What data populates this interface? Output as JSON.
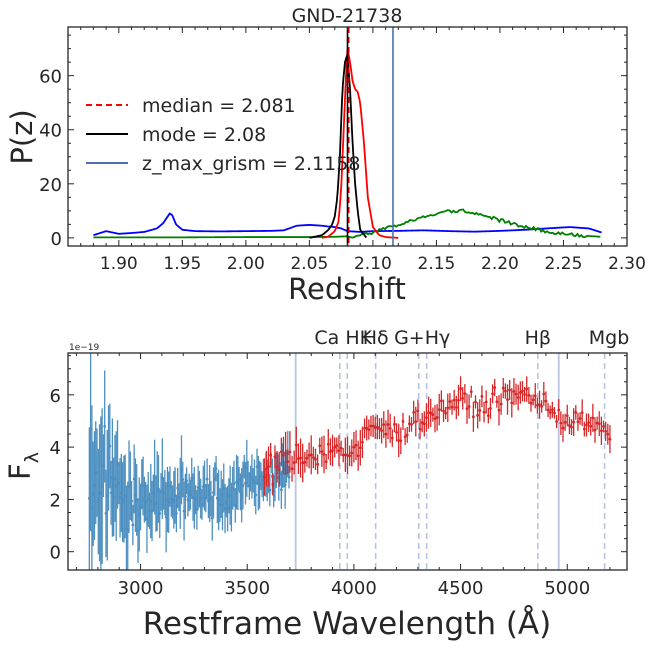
{
  "chart_data": [
    {
      "type": "line",
      "title": "GND-21738",
      "xlabel": "Redshift",
      "ylabel": "P(z)",
      "xlim": [
        1.86,
        2.3
      ],
      "ylim": [
        -3,
        78
      ],
      "xticks": [
        1.9,
        1.95,
        2.0,
        2.05,
        2.1,
        2.15,
        2.2,
        2.25,
        2.3
      ],
      "xtick_labels": [
        "1.90",
        "1.95",
        "2.00",
        "2.05",
        "2.10",
        "2.15",
        "2.20",
        "2.25",
        "2.30"
      ],
      "yticks": [
        0,
        20,
        40,
        60
      ],
      "ytick_labels": [
        "0",
        "20",
        "40",
        "60"
      ],
      "grid": false,
      "legend_placement": "center-left",
      "legend": [
        {
          "label": "median = 2.081",
          "color": "#ff0000",
          "style": "dashed"
        },
        {
          "label": "mode = 2.08",
          "color": "#000000",
          "style": "solid"
        },
        {
          "label": "z_max_grism = 2.1158",
          "color": "#4c72b0",
          "style": "solid"
        }
      ],
      "vlines": [
        {
          "x": 2.081,
          "color": "#ff0000",
          "style": "dashed"
        },
        {
          "x": 2.08,
          "color": "#000000",
          "style": "solid"
        },
        {
          "x": 2.1158,
          "color": "#4c72b0",
          "style": "solid"
        }
      ],
      "series": [
        {
          "color": "#0000ff",
          "x": [
            1.88,
            1.89,
            1.895,
            1.9,
            1.91,
            1.92,
            1.93,
            1.935,
            1.94,
            1.942,
            1.945,
            1.95,
            1.96,
            1.98,
            2.0,
            2.02,
            2.03,
            2.04,
            2.05,
            2.06,
            2.065,
            2.07,
            2.075,
            2.08,
            2.09,
            2.1,
            2.12,
            2.14,
            2.16,
            2.18,
            2.2,
            2.22,
            2.24,
            2.255,
            2.27,
            2.28
          ],
          "y": [
            1.0,
            2.5,
            2.0,
            1.5,
            1.8,
            2.2,
            3.5,
            5.5,
            9.0,
            8.5,
            5.0,
            3.0,
            2.5,
            2.4,
            2.5,
            2.6,
            2.8,
            4.5,
            4.8,
            4.5,
            4.2,
            4.0,
            3.5,
            2.5,
            2.2,
            2.5,
            2.6,
            2.8,
            2.5,
            2.3,
            2.6,
            3.0,
            3.6,
            4.0,
            3.5,
            2.0
          ]
        },
        {
          "color": "#008000",
          "x": [
            1.88,
            1.95,
            2.0,
            2.05,
            2.07,
            2.09,
            2.1,
            2.12,
            2.14,
            2.15,
            2.16,
            2.17,
            2.18,
            2.19,
            2.2,
            2.22,
            2.24,
            2.26,
            2.28
          ],
          "y": [
            0.2,
            0.2,
            0.3,
            0.3,
            0.4,
            0.8,
            2.0,
            5.0,
            7.5,
            9.0,
            9.8,
            10.0,
            9.3,
            8.0,
            6.5,
            4.0,
            2.2,
            1.0,
            0.4
          ]
        },
        {
          "color": "#ff0000",
          "x": [
            2.06,
            2.065,
            2.07,
            2.073,
            2.075,
            2.077,
            2.079,
            2.08,
            2.082,
            2.084,
            2.086,
            2.088,
            2.09,
            2.093,
            2.096,
            2.1,
            2.105,
            2.11,
            2.12
          ],
          "y": [
            0.0,
            0.5,
            2.5,
            6.0,
            18.0,
            40.0,
            62.0,
            70.0,
            65.0,
            58.0,
            55.0,
            54.0,
            50.0,
            35.0,
            15.0,
            4.0,
            1.0,
            0.3,
            0.0
          ]
        },
        {
          "color": "#000000",
          "x": [
            2.05,
            2.06,
            2.065,
            2.068,
            2.07,
            2.072,
            2.074,
            2.076,
            2.078,
            2.08,
            2.082,
            2.084,
            2.086,
            2.088,
            2.09,
            2.095
          ],
          "y": [
            0.0,
            1.0,
            3.0,
            5.0,
            8.0,
            15.0,
            30.0,
            55.0,
            65.0,
            68.0,
            55.0,
            35.0,
            20.0,
            10.0,
            3.0,
            0.0
          ]
        }
      ]
    },
    {
      "type": "scatter",
      "xlabel": "Restframe Wavelength (Å)",
      "ylabel": "F_λ",
      "ylabel_main": "F",
      "ylabel_sub": "λ",
      "offset_label": "1e−19",
      "xlim": [
        2660,
        5280
      ],
      "ylim": [
        -0.7,
        7.6
      ],
      "xticks": [
        3000,
        3500,
        4000,
        4500,
        5000
      ],
      "xtick_labels": [
        "3000",
        "3500",
        "4000",
        "4500",
        "5000"
      ],
      "yticks": [
        0,
        2,
        4,
        6
      ],
      "ytick_labels": [
        "0",
        "2",
        "4",
        "6"
      ],
      "grid": false,
      "line_labels": [
        {
          "text": "Ca HK",
          "x": 3950
        },
        {
          "text": "Hδ",
          "x": 4102
        },
        {
          "text": "G+Hγ",
          "x": 4320
        },
        {
          "text": "Hβ",
          "x": 4862
        },
        {
          "text": "Mgb",
          "x": 5175
        }
      ],
      "vlines_solid": [
        3727,
        4960
      ],
      "vlines_dashed": [
        3934,
        3969,
        4102,
        4304,
        4341,
        4862,
        5175
      ],
      "series": [
        {
          "color": "#4c8fc0",
          "x_range": [
            2760,
            3700
          ],
          "trend_x": [
            2760,
            2800,
            2900,
            3000,
            3100,
            3200,
            3300,
            3400,
            3500,
            3600,
            3700
          ],
          "trend_y": [
            2.5,
            3.5,
            2.4,
            1.8,
            2.1,
            2.0,
            2.3,
            2.2,
            2.6,
            2.9,
            3.0
          ],
          "noise_x": [
            2760,
            2850,
            3000,
            3300,
            3700
          ],
          "noise_y": [
            4.5,
            2.5,
            1.8,
            1.3,
            1.0
          ]
        },
        {
          "color": "#d62728",
          "x_range": [
            3580,
            5200
          ],
          "trend_x": [
            3580,
            3700,
            3800,
            3900,
            4000,
            4100,
            4200,
            4300,
            4400,
            4500,
            4600,
            4700,
            4800,
            4900,
            5000,
            5100,
            5200
          ],
          "trend_y": [
            3.0,
            3.6,
            3.7,
            3.9,
            3.8,
            4.8,
            4.5,
            5.1,
            5.4,
            5.8,
            5.5,
            5.9,
            6.1,
            5.5,
            5.0,
            4.9,
            4.5
          ],
          "noise_x": [
            3580,
            3800,
            4200,
            4800,
            5200
          ],
          "noise_y": [
            1.0,
            0.8,
            0.7,
            0.6,
            0.6
          ]
        }
      ]
    }
  ]
}
